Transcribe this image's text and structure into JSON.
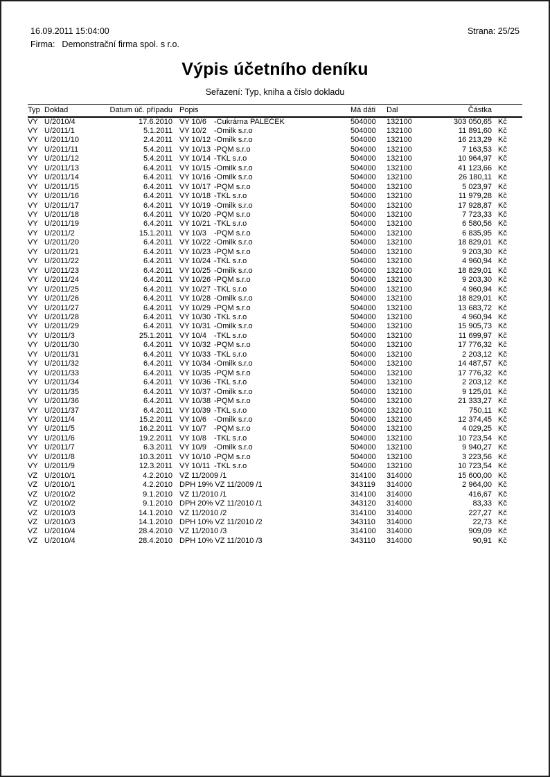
{
  "header": {
    "printed_at": "16.09.2011 15:04:00",
    "page_label": "Strana: 25/25",
    "company_label": "Firma:",
    "company_name": "Demonstrační firma spol. s r.o.",
    "title": "Výpis účetního deníku",
    "sort_line": "Seřazení: Typ, kniha a číslo dokladu"
  },
  "table": {
    "columns": [
      "Typ",
      "Doklad",
      "Datum úč. případu",
      "Popis",
      "Má dáti",
      "Dal",
      "Částka"
    ],
    "currency_suffix": "Kč",
    "rows": [
      {
        "typ": "VY",
        "doklad": "U/2010/4",
        "datum": "17.6.2010",
        "popis_ref": "VY 10/6",
        "popis_desc": "-Cukrárna PALEČEK",
        "madati": "504000",
        "dal": "132100",
        "castka": "303 050,65"
      },
      {
        "typ": "VY",
        "doklad": "U/2011/1",
        "datum": "5.1.2011",
        "popis_ref": "VY 10/2",
        "popis_desc": "-Omilk s.r.o",
        "madati": "504000",
        "dal": "132100",
        "castka": "11 891,60"
      },
      {
        "typ": "VY",
        "doklad": "U/2011/10",
        "datum": "2.4.2011",
        "popis_ref": "VY 10/12",
        "popis_desc": "-Omilk s.r.o",
        "madati": "504000",
        "dal": "132100",
        "castka": "16 213,29"
      },
      {
        "typ": "VY",
        "doklad": "U/2011/11",
        "datum": "5.4.2011",
        "popis_ref": "VY 10/13",
        "popis_desc": "-PQM s.r.o",
        "madati": "504000",
        "dal": "132100",
        "castka": "7 163,53"
      },
      {
        "typ": "VY",
        "doklad": "U/2011/12",
        "datum": "5.4.2011",
        "popis_ref": "VY 10/14",
        "popis_desc": "-TKL s.r.o",
        "madati": "504000",
        "dal": "132100",
        "castka": "10 964,97"
      },
      {
        "typ": "VY",
        "doklad": "U/2011/13",
        "datum": "6.4.2011",
        "popis_ref": "VY 10/15",
        "popis_desc": "-Omilk s.r.o",
        "madati": "504000",
        "dal": "132100",
        "castka": "41 123,66"
      },
      {
        "typ": "VY",
        "doklad": "U/2011/14",
        "datum": "6.4.2011",
        "popis_ref": "VY 10/16",
        "popis_desc": "-Omilk s.r.o",
        "madati": "504000",
        "dal": "132100",
        "castka": "26 180,11"
      },
      {
        "typ": "VY",
        "doklad": "U/2011/15",
        "datum": "6.4.2011",
        "popis_ref": "VY 10/17",
        "popis_desc": "-PQM s.r.o",
        "madati": "504000",
        "dal": "132100",
        "castka": "5 023,97"
      },
      {
        "typ": "VY",
        "doklad": "U/2011/16",
        "datum": "6.4.2011",
        "popis_ref": "VY 10/18",
        "popis_desc": "-TKL s.r.o",
        "madati": "504000",
        "dal": "132100",
        "castka": "11 979,28"
      },
      {
        "typ": "VY",
        "doklad": "U/2011/17",
        "datum": "6.4.2011",
        "popis_ref": "VY 10/19",
        "popis_desc": "-Omilk s.r.o",
        "madati": "504000",
        "dal": "132100",
        "castka": "17 928,87"
      },
      {
        "typ": "VY",
        "doklad": "U/2011/18",
        "datum": "6.4.2011",
        "popis_ref": "VY 10/20",
        "popis_desc": "-PQM s.r.o",
        "madati": "504000",
        "dal": "132100",
        "castka": "7 723,33"
      },
      {
        "typ": "VY",
        "doklad": "U/2011/19",
        "datum": "6.4.2011",
        "popis_ref": "VY 10/21",
        "popis_desc": "-TKL s.r.o",
        "madati": "504000",
        "dal": "132100",
        "castka": "6 580,56"
      },
      {
        "typ": "VY",
        "doklad": "U/2011/2",
        "datum": "15.1.2011",
        "popis_ref": "VY 10/3",
        "popis_desc": "-PQM s.r.o",
        "madati": "504000",
        "dal": "132100",
        "castka": "6 835,95"
      },
      {
        "typ": "VY",
        "doklad": "U/2011/20",
        "datum": "6.4.2011",
        "popis_ref": "VY 10/22",
        "popis_desc": "-Omilk s.r.o",
        "madati": "504000",
        "dal": "132100",
        "castka": "18 829,01"
      },
      {
        "typ": "VY",
        "doklad": "U/2011/21",
        "datum": "6.4.2011",
        "popis_ref": "VY 10/23",
        "popis_desc": "-PQM s.r.o",
        "madati": "504000",
        "dal": "132100",
        "castka": "9 203,30"
      },
      {
        "typ": "VY",
        "doklad": "U/2011/22",
        "datum": "6.4.2011",
        "popis_ref": "VY 10/24",
        "popis_desc": "-TKL s.r.o",
        "madati": "504000",
        "dal": "132100",
        "castka": "4 960,94"
      },
      {
        "typ": "VY",
        "doklad": "U/2011/23",
        "datum": "6.4.2011",
        "popis_ref": "VY 10/25",
        "popis_desc": "-Omilk s.r.o",
        "madati": "504000",
        "dal": "132100",
        "castka": "18 829,01"
      },
      {
        "typ": "VY",
        "doklad": "U/2011/24",
        "datum": "6.4.2011",
        "popis_ref": "VY 10/26",
        "popis_desc": "-PQM s.r.o",
        "madati": "504000",
        "dal": "132100",
        "castka": "9 203,30"
      },
      {
        "typ": "VY",
        "doklad": "U/2011/25",
        "datum": "6.4.2011",
        "popis_ref": "VY 10/27",
        "popis_desc": "-TKL s.r.o",
        "madati": "504000",
        "dal": "132100",
        "castka": "4 960,94"
      },
      {
        "typ": "VY",
        "doklad": "U/2011/26",
        "datum": "6.4.2011",
        "popis_ref": "VY 10/28",
        "popis_desc": "-Omilk s.r.o",
        "madati": "504000",
        "dal": "132100",
        "castka": "18 829,01"
      },
      {
        "typ": "VY",
        "doklad": "U/2011/27",
        "datum": "6.4.2011",
        "popis_ref": "VY 10/29",
        "popis_desc": "-PQM s.r.o",
        "madati": "504000",
        "dal": "132100",
        "castka": "13 683,72"
      },
      {
        "typ": "VY",
        "doklad": "U/2011/28",
        "datum": "6.4.2011",
        "popis_ref": "VY 10/30",
        "popis_desc": "-TKL s.r.o",
        "madati": "504000",
        "dal": "132100",
        "castka": "4 960,94"
      },
      {
        "typ": "VY",
        "doklad": "U/2011/29",
        "datum": "6.4.2011",
        "popis_ref": "VY 10/31",
        "popis_desc": "-Omilk s.r.o",
        "madati": "504000",
        "dal": "132100",
        "castka": "15 905,73"
      },
      {
        "typ": "VY",
        "doklad": "U/2011/3",
        "datum": "25.1.2011",
        "popis_ref": "VY 10/4",
        "popis_desc": "-TKL s.r.o",
        "madati": "504000",
        "dal": "132100",
        "castka": "11 699,97"
      },
      {
        "typ": "VY",
        "doklad": "U/2011/30",
        "datum": "6.4.2011",
        "popis_ref": "VY 10/32",
        "popis_desc": "-PQM s.r.o",
        "madati": "504000",
        "dal": "132100",
        "castka": "17 776,32"
      },
      {
        "typ": "VY",
        "doklad": "U/2011/31",
        "datum": "6.4.2011",
        "popis_ref": "VY 10/33",
        "popis_desc": "-TKL s.r.o",
        "madati": "504000",
        "dal": "132100",
        "castka": "2 203,12"
      },
      {
        "typ": "VY",
        "doklad": "U/2011/32",
        "datum": "6.4.2011",
        "popis_ref": "VY 10/34",
        "popis_desc": "-Omilk s.r.o",
        "madati": "504000",
        "dal": "132100",
        "castka": "14 487,57"
      },
      {
        "typ": "VY",
        "doklad": "U/2011/33",
        "datum": "6.4.2011",
        "popis_ref": "VY 10/35",
        "popis_desc": "-PQM s.r.o",
        "madati": "504000",
        "dal": "132100",
        "castka": "17 776,32"
      },
      {
        "typ": "VY",
        "doklad": "U/2011/34",
        "datum": "6.4.2011",
        "popis_ref": "VY 10/36",
        "popis_desc": "-TKL s.r.o",
        "madati": "504000",
        "dal": "132100",
        "castka": "2 203,12"
      },
      {
        "typ": "VY",
        "doklad": "U/2011/35",
        "datum": "6.4.2011",
        "popis_ref": "VY 10/37",
        "popis_desc": "-Omilk s.r.o",
        "madati": "504000",
        "dal": "132100",
        "castka": "9 125,01"
      },
      {
        "typ": "VY",
        "doklad": "U/2011/36",
        "datum": "6.4.2011",
        "popis_ref": "VY 10/38",
        "popis_desc": "-PQM s.r.o",
        "madati": "504000",
        "dal": "132100",
        "castka": "21 333,27"
      },
      {
        "typ": "VY",
        "doklad": "U/2011/37",
        "datum": "6.4.2011",
        "popis_ref": "VY 10/39",
        "popis_desc": "-TKL s.r.o",
        "madati": "504000",
        "dal": "132100",
        "castka": "750,11"
      },
      {
        "typ": "VY",
        "doklad": "U/2011/4",
        "datum": "15.2.2011",
        "popis_ref": "VY 10/6",
        "popis_desc": "-Omilk s.r.o",
        "madati": "504000",
        "dal": "132100",
        "castka": "12 374,45"
      },
      {
        "typ": "VY",
        "doklad": "U/2011/5",
        "datum": "16.2.2011",
        "popis_ref": "VY 10/7",
        "popis_desc": "-PQM s.r.o",
        "madati": "504000",
        "dal": "132100",
        "castka": "4 029,25"
      },
      {
        "typ": "VY",
        "doklad": "U/2011/6",
        "datum": "19.2.2011",
        "popis_ref": "VY 10/8",
        "popis_desc": "-TKL s.r.o",
        "madati": "504000",
        "dal": "132100",
        "castka": "10 723,54"
      },
      {
        "typ": "VY",
        "doklad": "U/2011/7",
        "datum": "6.3.2011",
        "popis_ref": "VY 10/9",
        "popis_desc": "-Omilk s.r.o",
        "madati": "504000",
        "dal": "132100",
        "castka": "9 940,27"
      },
      {
        "typ": "VY",
        "doklad": "U/2011/8",
        "datum": "10.3.2011",
        "popis_ref": "VY 10/10",
        "popis_desc": "-PQM s.r.o",
        "madati": "504000",
        "dal": "132100",
        "castka": "3 223,56"
      },
      {
        "typ": "VY",
        "doklad": "U/2011/9",
        "datum": "12.3.2011",
        "popis_ref": "VY 10/11",
        "popis_desc": "-TKL s.r.o",
        "madati": "504000",
        "dal": "132100",
        "castka": "10 723,54"
      },
      {
        "typ": "VZ",
        "doklad": "U/2010/1",
        "datum": "4.2.2010",
        "popis_ref": "VZ 11/2009 /1",
        "popis_desc": "",
        "madati": "314100",
        "dal": "314000",
        "castka": "15 600,00"
      },
      {
        "typ": "VZ",
        "doklad": "U/2010/1",
        "datum": "4.2.2010",
        "popis_ref": "DPH 19% VZ 11/2009 /1",
        "popis_desc": "",
        "madati": "343119",
        "dal": "314000",
        "castka": "2 964,00"
      },
      {
        "typ": "VZ",
        "doklad": "U/2010/2",
        "datum": "9.1.2010",
        "popis_ref": "VZ 11/2010 /1",
        "popis_desc": "",
        "madati": "314100",
        "dal": "314000",
        "castka": "416,67"
      },
      {
        "typ": "VZ",
        "doklad": "U/2010/2",
        "datum": "9.1.2010",
        "popis_ref": "DPH 20% VZ 11/2010 /1",
        "popis_desc": "",
        "madati": "343120",
        "dal": "314000",
        "castka": "83,33"
      },
      {
        "typ": "VZ",
        "doklad": "U/2010/3",
        "datum": "14.1.2010",
        "popis_ref": "VZ 11/2010 /2",
        "popis_desc": "",
        "madati": "314100",
        "dal": "314000",
        "castka": "227,27"
      },
      {
        "typ": "VZ",
        "doklad": "U/2010/3",
        "datum": "14.1.2010",
        "popis_ref": "DPH 10% VZ 11/2010 /2",
        "popis_desc": "",
        "madati": "343110",
        "dal": "314000",
        "castka": "22,73"
      },
      {
        "typ": "VZ",
        "doklad": "U/2010/4",
        "datum": "28.4.2010",
        "popis_ref": "VZ 11/2010 /3",
        "popis_desc": "",
        "madati": "314100",
        "dal": "314000",
        "castka": "909,09"
      },
      {
        "typ": "VZ",
        "doklad": "U/2010/4",
        "datum": "28.4.2010",
        "popis_ref": "DPH 10% VZ 11/2010 /3",
        "popis_desc": "",
        "madati": "343110",
        "dal": "314000",
        "castka": "90,91"
      }
    ]
  }
}
